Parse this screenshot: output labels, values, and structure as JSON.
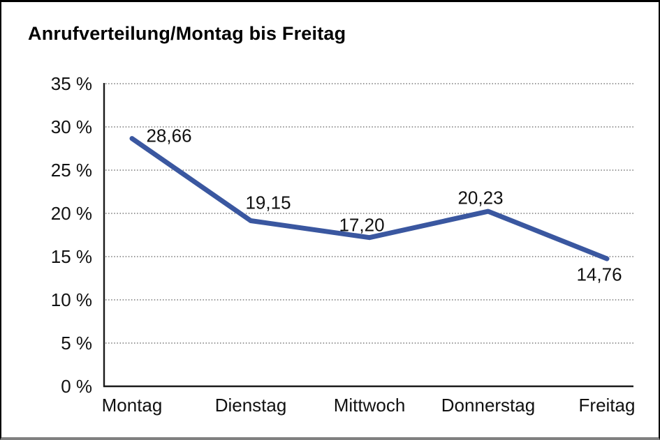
{
  "page": {
    "title": "Anrufverteilung/Montag bis Freitag"
  },
  "chart_data": {
    "type": "line",
    "title": "Anrufverteilung/Montag bis Freitag",
    "categories": [
      "Montag",
      "Dienstag",
      "Mittwoch",
      "Donnerstag",
      "Freitag"
    ],
    "values": [
      28.66,
      19.15,
      17.2,
      20.23,
      14.76
    ],
    "value_labels": [
      "28,66",
      "19,15",
      "17,20",
      "20,23",
      "14,76"
    ],
    "xlabel": "",
    "ylabel": "",
    "ylim": [
      0,
      35
    ],
    "ytick_step": 5,
    "ytick_labels": [
      "0 %",
      "5 %",
      "10 %",
      "15 %",
      "20 %",
      "25 %",
      "30 %",
      "35 %"
    ],
    "grid": "horizontal-dotted",
    "legend_position": "none",
    "unit": "percent"
  },
  "colors": {
    "line": "#3A57A0",
    "grid_dots": "#777777",
    "axis": "#1a1a1a",
    "text": "#111111",
    "background": "#ffffff",
    "frame_border": "#000000",
    "frame_bottom": "#808080"
  }
}
